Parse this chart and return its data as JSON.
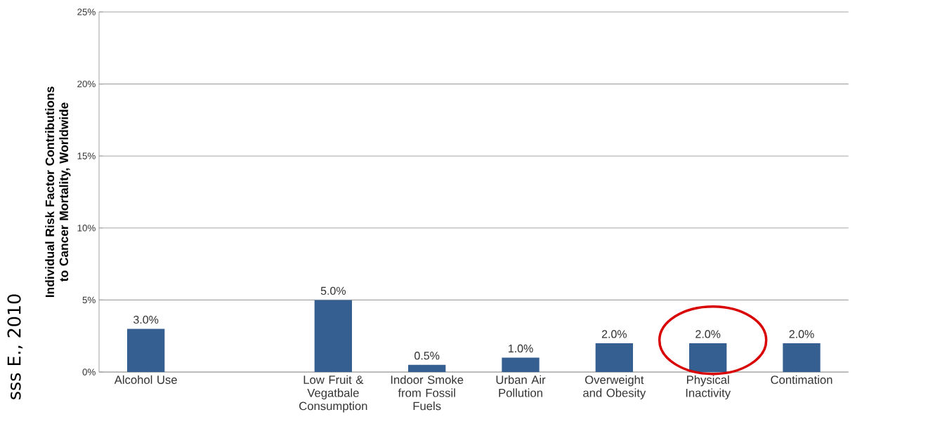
{
  "chart_data": {
    "type": "bar",
    "ylabel": "Individual Risk Factor Contributions to Cancer Mortality, Worldwide",
    "categories": [
      "Alcohol Use",
      null,
      "Low Fruit & Vegatbale Consumption",
      "Indoor Smoke from Fossil Fuels",
      "Urban Air Pollution",
      "Overweight and Obesity",
      "Physical Inactivity",
      "Contimation"
    ],
    "values": [
      3,
      null,
      5,
      0.5,
      1,
      2,
      2,
      2
    ],
    "value_labels": [
      "3.0%",
      null,
      "5.0%",
      "0.5%",
      "1.0%",
      "2.0%",
      "2.0%",
      "2.0%"
    ],
    "color": "#355f91",
    "ylim": [
      0,
      25
    ],
    "yticks": [
      {
        "value": 0,
        "label": "0%"
      },
      {
        "value": 5,
        "label": "5%"
      },
      {
        "value": 10,
        "label": "10%"
      },
      {
        "value": 15,
        "label": "15%"
      },
      {
        "value": 20,
        "label": "20%"
      },
      {
        "value": 25,
        "label": "25%"
      }
    ],
    "grid": "y",
    "annotations": [
      "sss E., 2010"
    ]
  }
}
